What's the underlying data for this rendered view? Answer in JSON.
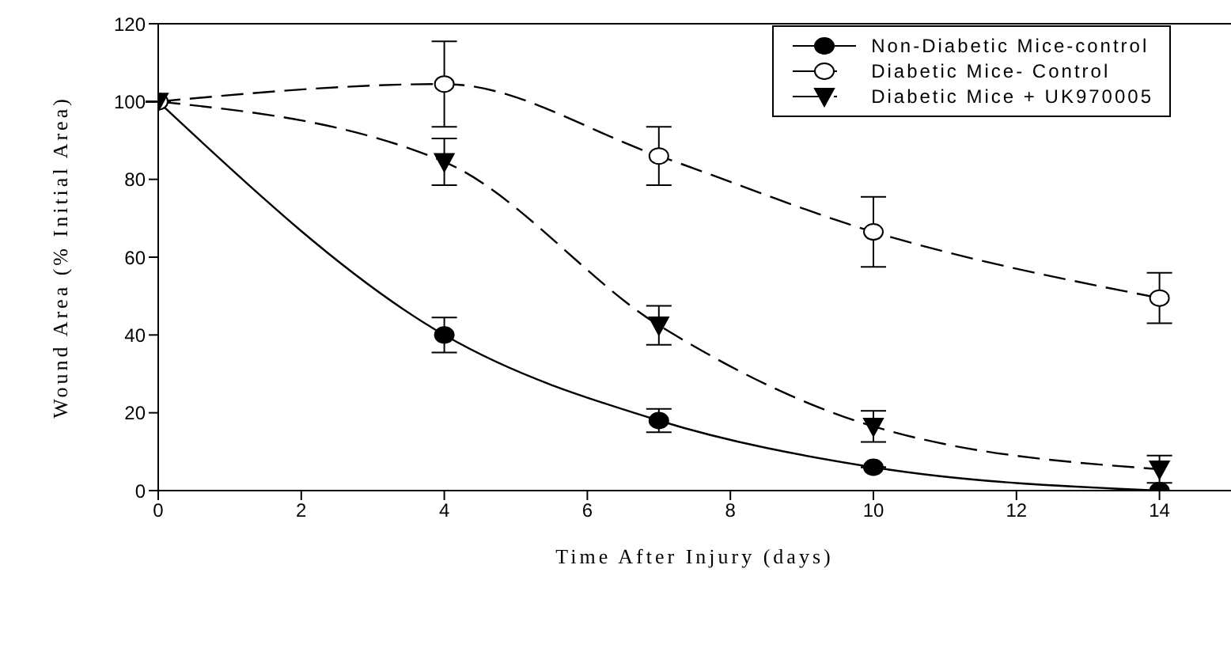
{
  "chart_data": {
    "type": "line",
    "xlabel": "Time After Injury (days)",
    "ylabel": "Wound Area (% Initial Area)",
    "x": [
      0,
      4,
      7,
      10,
      14
    ],
    "xlim": [
      0,
      15
    ],
    "xticks": [
      0,
      2,
      4,
      6,
      8,
      10,
      12,
      14
    ],
    "ylim": [
      0,
      120
    ],
    "yticks": [
      0,
      20,
      40,
      60,
      80,
      100,
      120
    ],
    "grid": false,
    "legend": "top right",
    "series": [
      {
        "name": "Non-Diabetic Mice-control",
        "color": "#000000",
        "marker": "circle",
        "line_style": "solid",
        "values": [
          100,
          40,
          18,
          6,
          0
        ],
        "errors": [
          null,
          4.5,
          3,
          null,
          null
        ]
      },
      {
        "name": "Diabetic Mice- Control",
        "color": "#000000",
        "colors": [
          "#ffffff",
          "#ffffff",
          "#ffffff",
          "#ffffff",
          "#ffffff"
        ],
        "marker": "circle",
        "line_style": "dashed",
        "values": [
          100,
          104.5,
          86,
          66.5,
          49.5
        ],
        "errors": [
          null,
          11,
          7.5,
          9,
          6.5
        ]
      },
      {
        "name": "Diabetic Mice + UK970005",
        "color": "#000000",
        "marker": "triangle",
        "line_style": "dashed",
        "values": [
          100,
          84.5,
          42.5,
          16.5,
          5.5
        ],
        "errors": [
          null,
          6,
          5,
          4,
          3.5
        ]
      }
    ]
  }
}
